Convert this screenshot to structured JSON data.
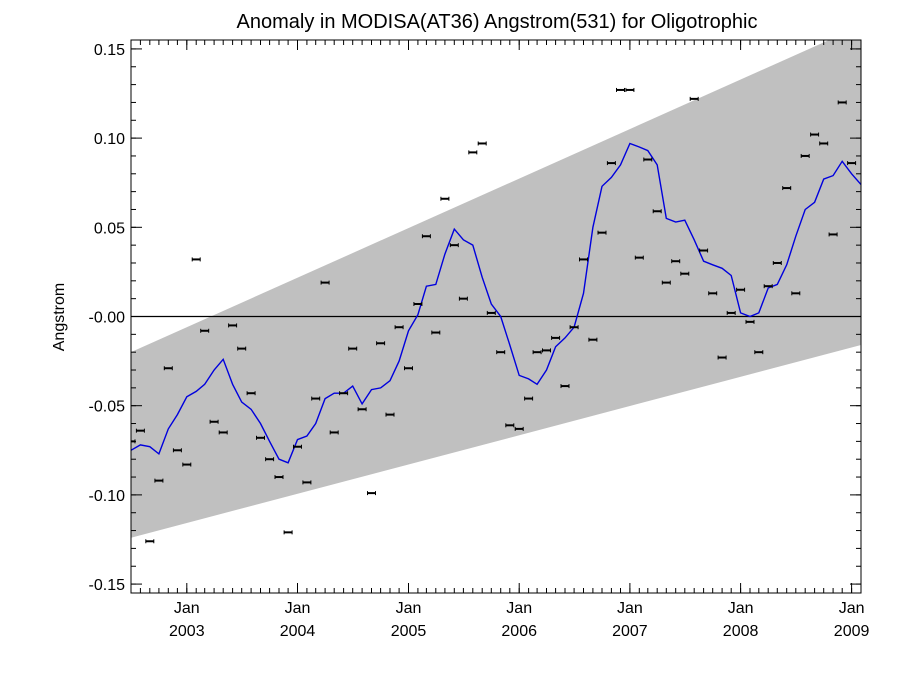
{
  "chart_data": {
    "type": "line",
    "title": "Anomaly in MODISA(AT36) Angstrom(531) for Oligotrophic",
    "xlabel": "",
    "ylabel": "Angstrom",
    "ylim": [
      -0.155,
      0.155
    ],
    "xlim": [
      "2002-07-01",
      "2009-02-01"
    ],
    "y_ticks": [
      {
        "value": 0.15,
        "label": "0.15"
      },
      {
        "value": 0.1,
        "label": "0.10"
      },
      {
        "value": 0.05,
        "label": "0.05"
      },
      {
        "value": 0.0,
        "label": "-0.00"
      },
      {
        "value": -0.05,
        "label": "-0.05"
      },
      {
        "value": -0.1,
        "label": "-0.10"
      },
      {
        "value": -0.15,
        "label": "-0.15"
      }
    ],
    "x_ticks": [
      {
        "date": "2003-01-01",
        "month": "Jan",
        "year": "2003"
      },
      {
        "date": "2004-01-01",
        "month": "Jan",
        "year": "2004"
      },
      {
        "date": "2005-01-01",
        "month": "Jan",
        "year": "2005"
      },
      {
        "date": "2006-01-01",
        "month": "Jan",
        "year": "2006"
      },
      {
        "date": "2007-01-01",
        "month": "Jan",
        "year": "2007"
      },
      {
        "date": "2008-01-01",
        "month": "Jan",
        "year": "2008"
      },
      {
        "date": "2009-01-01",
        "month": "Jan",
        "year": "2009"
      }
    ],
    "band": {
      "color": "#c0c0c0",
      "start": {
        "date": "2002-07-01",
        "upper": -0.02,
        "lower": -0.124
      },
      "end": {
        "date": "2009-02-01",
        "upper": 0.163,
        "lower": -0.016
      }
    },
    "zero_line": 0.0,
    "series": [
      {
        "kind": "smoothed",
        "color": "#0000dd",
        "points": [
          [
            "2002-07-01",
            -0.075
          ],
          [
            "2002-08-01",
            -0.072
          ],
          [
            "2002-09-01",
            -0.073
          ],
          [
            "2002-10-01",
            -0.077
          ],
          [
            "2002-11-01",
            -0.063
          ],
          [
            "2002-12-01",
            -0.055
          ],
          [
            "2003-01-01",
            -0.045
          ],
          [
            "2003-02-01",
            -0.042
          ],
          [
            "2003-03-01",
            -0.038
          ],
          [
            "2003-04-01",
            -0.03
          ],
          [
            "2003-05-01",
            -0.024
          ],
          [
            "2003-06-01",
            -0.038
          ],
          [
            "2003-07-01",
            -0.048
          ],
          [
            "2003-08-01",
            -0.052
          ],
          [
            "2003-09-01",
            -0.06
          ],
          [
            "2003-10-01",
            -0.07
          ],
          [
            "2003-11-01",
            -0.08
          ],
          [
            "2003-12-01",
            -0.082
          ],
          [
            "2004-01-01",
            -0.069
          ],
          [
            "2004-02-01",
            -0.067
          ],
          [
            "2004-03-01",
            -0.06
          ],
          [
            "2004-04-01",
            -0.046
          ],
          [
            "2004-05-01",
            -0.043
          ],
          [
            "2004-06-01",
            -0.043
          ],
          [
            "2004-07-01",
            -0.039
          ],
          [
            "2004-08-01",
            -0.049
          ],
          [
            "2004-09-01",
            -0.041
          ],
          [
            "2004-10-01",
            -0.04
          ],
          [
            "2004-11-01",
            -0.036
          ],
          [
            "2004-12-01",
            -0.025
          ],
          [
            "2005-01-01",
            -0.008
          ],
          [
            "2005-02-01",
            0.001
          ],
          [
            "2005-03-01",
            0.017
          ],
          [
            "2005-04-01",
            0.018
          ],
          [
            "2005-05-01",
            0.035
          ],
          [
            "2005-06-01",
            0.049
          ],
          [
            "2005-07-01",
            0.043
          ],
          [
            "2005-08-01",
            0.04
          ],
          [
            "2005-09-01",
            0.022
          ],
          [
            "2005-10-01",
            0.007
          ],
          [
            "2005-11-01",
            0.0
          ],
          [
            "2005-12-01",
            -0.016
          ],
          [
            "2006-01-01",
            -0.033
          ],
          [
            "2006-02-01",
            -0.035
          ],
          [
            "2006-03-01",
            -0.038
          ],
          [
            "2006-04-01",
            -0.03
          ],
          [
            "2006-05-01",
            -0.017
          ],
          [
            "2006-06-01",
            -0.012
          ],
          [
            "2006-07-01",
            -0.006
          ],
          [
            "2006-08-01",
            0.013
          ],
          [
            "2006-09-01",
            0.05
          ],
          [
            "2006-10-01",
            0.073
          ],
          [
            "2006-11-01",
            0.078
          ],
          [
            "2006-12-01",
            0.085
          ],
          [
            "2007-01-01",
            0.097
          ],
          [
            "2007-02-01",
            0.095
          ],
          [
            "2007-03-01",
            0.093
          ],
          [
            "2007-04-01",
            0.085
          ],
          [
            "2007-05-01",
            0.055
          ],
          [
            "2007-06-01",
            0.053
          ],
          [
            "2007-07-01",
            0.054
          ],
          [
            "2007-08-01",
            0.043
          ],
          [
            "2007-09-01",
            0.031
          ],
          [
            "2007-10-01",
            0.029
          ],
          [
            "2007-11-01",
            0.027
          ],
          [
            "2007-12-01",
            0.023
          ],
          [
            "2008-01-01",
            0.002
          ],
          [
            "2008-02-01",
            0.0
          ],
          [
            "2008-03-01",
            0.002
          ],
          [
            "2008-04-01",
            0.016
          ],
          [
            "2008-05-01",
            0.018
          ],
          [
            "2008-06-01",
            0.029
          ],
          [
            "2008-07-01",
            0.045
          ],
          [
            "2008-08-01",
            0.06
          ],
          [
            "2008-09-01",
            0.064
          ],
          [
            "2008-10-01",
            0.077
          ],
          [
            "2008-11-01",
            0.079
          ],
          [
            "2008-12-01",
            0.087
          ],
          [
            "2009-01-01",
            0.08
          ],
          [
            "2009-02-01",
            0.074
          ]
        ]
      },
      {
        "kind": "monthly",
        "color": "#000000",
        "points": [
          [
            "2002-07-01",
            -0.07
          ],
          [
            "2002-08-01",
            -0.064
          ],
          [
            "2002-09-01",
            -0.126
          ],
          [
            "2002-10-01",
            -0.092
          ],
          [
            "2002-11-01",
            -0.029
          ],
          [
            "2002-12-01",
            -0.075
          ],
          [
            "2003-01-01",
            -0.083
          ],
          [
            "2003-02-01",
            0.032
          ],
          [
            "2003-03-01",
            -0.008
          ],
          [
            "2003-04-01",
            -0.059
          ],
          [
            "2003-05-01",
            -0.065
          ],
          [
            "2003-06-01",
            -0.005
          ],
          [
            "2003-07-01",
            -0.018
          ],
          [
            "2003-08-01",
            -0.043
          ],
          [
            "2003-09-01",
            -0.068
          ],
          [
            "2003-10-01",
            -0.08
          ],
          [
            "2003-11-01",
            -0.09
          ],
          [
            "2003-12-01",
            -0.121
          ],
          [
            "2004-01-01",
            -0.073
          ],
          [
            "2004-02-01",
            -0.093
          ],
          [
            "2004-03-01",
            -0.046
          ],
          [
            "2004-04-01",
            0.019
          ],
          [
            "2004-05-01",
            -0.065
          ],
          [
            "2004-06-01",
            -0.043
          ],
          [
            "2004-07-01",
            -0.018
          ],
          [
            "2004-08-01",
            -0.052
          ],
          [
            "2004-09-01",
            -0.099
          ],
          [
            "2004-10-01",
            -0.015
          ],
          [
            "2004-11-01",
            -0.055
          ],
          [
            "2004-12-01",
            -0.006
          ],
          [
            "2005-01-01",
            -0.029
          ],
          [
            "2005-02-01",
            0.007
          ],
          [
            "2005-03-01",
            0.045
          ],
          [
            "2005-04-01",
            -0.009
          ],
          [
            "2005-05-01",
            0.066
          ],
          [
            "2005-06-01",
            0.04
          ],
          [
            "2005-07-01",
            0.01
          ],
          [
            "2005-08-01",
            0.092
          ],
          [
            "2005-09-01",
            0.097
          ],
          [
            "2005-10-01",
            0.002
          ],
          [
            "2005-11-01",
            -0.02
          ],
          [
            "2005-12-01",
            -0.061
          ],
          [
            "2006-01-01",
            -0.063
          ],
          [
            "2006-02-01",
            -0.046
          ],
          [
            "2006-03-01",
            -0.02
          ],
          [
            "2006-04-01",
            -0.019
          ],
          [
            "2006-05-01",
            -0.012
          ],
          [
            "2006-06-01",
            -0.039
          ],
          [
            "2006-07-01",
            -0.006
          ],
          [
            "2006-08-01",
            0.032
          ],
          [
            "2006-09-01",
            -0.013
          ],
          [
            "2006-10-01",
            0.047
          ],
          [
            "2006-11-01",
            0.086
          ],
          [
            "2006-12-01",
            0.127
          ],
          [
            "2007-01-01",
            0.127
          ],
          [
            "2007-02-01",
            0.033
          ],
          [
            "2007-03-01",
            0.088
          ],
          [
            "2007-04-01",
            0.059
          ],
          [
            "2007-05-01",
            0.019
          ],
          [
            "2007-06-01",
            0.031
          ],
          [
            "2007-07-01",
            0.024
          ],
          [
            "2007-08-01",
            0.122
          ],
          [
            "2007-09-01",
            0.037
          ],
          [
            "2007-10-01",
            0.013
          ],
          [
            "2007-11-01",
            -0.023
          ],
          [
            "2007-12-01",
            0.002
          ],
          [
            "2008-01-01",
            0.015
          ],
          [
            "2008-02-01",
            -0.003
          ],
          [
            "2008-03-01",
            -0.02
          ],
          [
            "2008-04-01",
            0.017
          ],
          [
            "2008-05-01",
            0.03
          ],
          [
            "2008-06-01",
            0.072
          ],
          [
            "2008-07-01",
            0.013
          ],
          [
            "2008-08-01",
            0.09
          ],
          [
            "2008-09-01",
            0.102
          ],
          [
            "2008-10-01",
            0.097
          ],
          [
            "2008-11-01",
            0.046
          ],
          [
            "2008-12-01",
            0.12
          ],
          [
            "2009-01-01",
            0.086
          ]
        ]
      }
    ]
  }
}
